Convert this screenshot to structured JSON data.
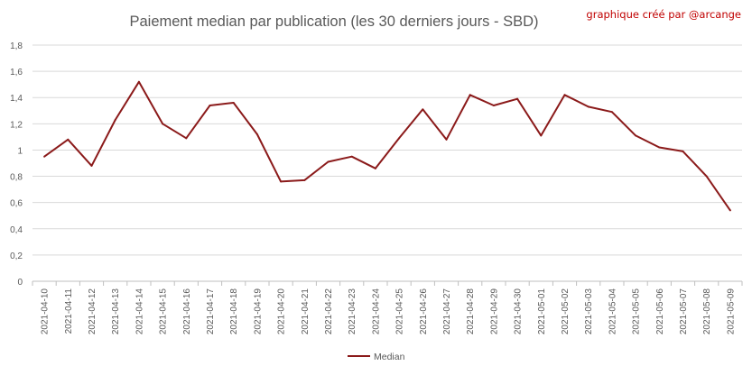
{
  "credit": "graphique créé par @arcange",
  "chart_data": {
    "type": "line",
    "title": "Paiement median par publication (les 30 derniers jours - SBD)",
    "xlabel": "",
    "ylabel": "",
    "ylim": [
      0,
      1.8
    ],
    "yticks": [
      "0",
      "0,2",
      "0,4",
      "0,6",
      "0,8",
      "1",
      "1,2",
      "1,4",
      "1,6",
      "1,8"
    ],
    "grid": true,
    "legend_position": "bottom",
    "categories": [
      "2021-04-10",
      "2021-04-11",
      "2021-04-12",
      "2021-04-13",
      "2021-04-14",
      "2021-04-15",
      "2021-04-16",
      "2021-04-17",
      "2021-04-18",
      "2021-04-19",
      "2021-04-20",
      "2021-04-21",
      "2021-04-22",
      "2021-04-23",
      "2021-04-24",
      "2021-04-25",
      "2021-04-26",
      "2021-04-27",
      "2021-04-28",
      "2021-04-29",
      "2021-04-30",
      "2021-05-01",
      "2021-05-02",
      "2021-05-03",
      "2021-05-04",
      "2021-05-05",
      "2021-05-06",
      "2021-05-07",
      "2021-05-08",
      "2021-05-09"
    ],
    "series": [
      {
        "name": "Median",
        "color": "#8b1a1a",
        "values": [
          0.95,
          1.08,
          0.88,
          1.23,
          1.52,
          1.2,
          1.09,
          1.34,
          1.36,
          1.12,
          0.76,
          0.77,
          0.91,
          0.95,
          0.86,
          1.09,
          1.31,
          1.08,
          1.42,
          1.34,
          1.39,
          1.11,
          1.42,
          1.33,
          1.29,
          1.11,
          1.02,
          0.99,
          0.8,
          0.54
        ]
      }
    ]
  }
}
